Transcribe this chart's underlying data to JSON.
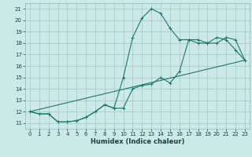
{
  "xlabel": "Humidex (Indice chaleur)",
  "bg_color": "#cce8e8",
  "grid_color": "#aacccc",
  "line_color": "#1a7a6a",
  "xlim": [
    -0.5,
    23.5
  ],
  "ylim": [
    10.5,
    21.5
  ],
  "xticks": [
    0,
    1,
    2,
    3,
    4,
    5,
    6,
    7,
    8,
    9,
    10,
    11,
    12,
    13,
    14,
    15,
    16,
    17,
    18,
    19,
    20,
    21,
    22,
    23
  ],
  "yticks": [
    11,
    12,
    13,
    14,
    15,
    16,
    17,
    18,
    19,
    20,
    21
  ],
  "line1_x": [
    0,
    1,
    2,
    3,
    4,
    5,
    6,
    7,
    8,
    9,
    10,
    11,
    12,
    13,
    14,
    15,
    16,
    17,
    18,
    19,
    20,
    21,
    22,
    23
  ],
  "line1_y": [
    12.0,
    11.8,
    11.8,
    11.1,
    11.1,
    11.2,
    11.5,
    12.0,
    12.6,
    12.3,
    12.3,
    14.0,
    14.3,
    14.4,
    15.0,
    14.5,
    15.5,
    18.3,
    18.3,
    18.0,
    18.0,
    18.5,
    18.3,
    16.5
  ],
  "line2_x": [
    0,
    1,
    2,
    3,
    4,
    5,
    6,
    7,
    8,
    9,
    10,
    11,
    12,
    13,
    14,
    15,
    16,
    17,
    18,
    19,
    20,
    21,
    22,
    23
  ],
  "line2_y": [
    12.0,
    11.8,
    11.8,
    11.1,
    11.1,
    11.2,
    11.5,
    12.0,
    12.6,
    12.3,
    15.0,
    18.5,
    20.2,
    21.0,
    20.6,
    19.3,
    18.3,
    18.3,
    18.0,
    18.0,
    18.5,
    18.3,
    17.4,
    16.5
  ],
  "line3_x": [
    0,
    23
  ],
  "line3_y": [
    12.0,
    16.5
  ]
}
